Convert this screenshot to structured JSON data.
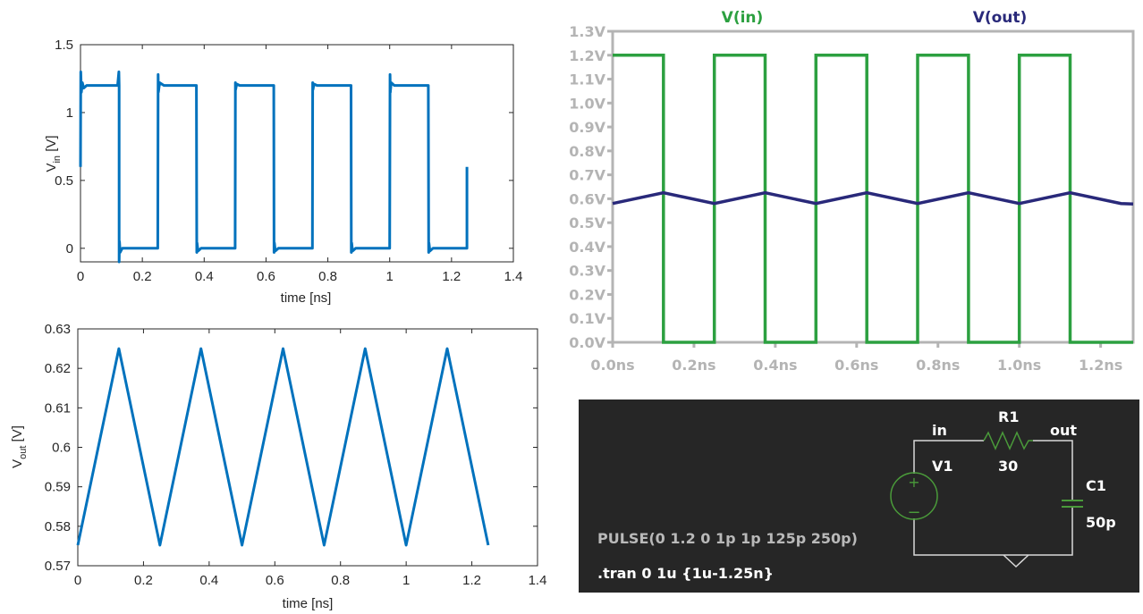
{
  "colors": {
    "matlab_line": "#0072bd",
    "lt_vin": "#2ca040",
    "lt_vout": "#29297a",
    "lt_frame": "#b4b4b4",
    "lt_tick_text": "#b4b4b4",
    "schematic_bg": "#262626",
    "schematic_wire": "#d8d8d8",
    "schematic_component": "#4a9a3a"
  },
  "chart_data": [
    {
      "type": "line",
      "xlabel": "time [ns]",
      "ylabel_main": "V",
      "ylabel_sub": "in",
      "ylabel_unit": " [V]",
      "xlim": [
        0,
        1.4
      ],
      "ylim": [
        -0.1,
        1.5
      ],
      "xticks": [
        0,
        0.2,
        0.4,
        0.6,
        0.8,
        1,
        1.2,
        1.4
      ],
      "xtick_labels": [
        "0",
        "0.2",
        "0.4",
        "0.6",
        "0.8",
        "1",
        "1.2",
        "1.4"
      ],
      "yticks": [
        0,
        0.5,
        1,
        1.5
      ],
      "ytick_labels": [
        "0",
        "0.5",
        "1",
        "1.5"
      ],
      "series": [
        {
          "x": [
            0,
            0.001,
            0.003,
            0.006,
            0.01,
            0.02,
            0.12,
            0.124,
            0.125,
            0.125,
            0.126,
            0.128,
            0.135,
            0.25,
            0.251,
            0.252,
            0.256,
            0.27,
            0.375,
            0.376,
            0.377,
            0.38,
            0.39,
            0.5,
            0.501,
            0.502,
            0.505,
            0.515,
            0.625,
            0.626,
            0.627,
            0.63,
            0.64,
            0.75,
            0.751,
            0.752,
            0.755,
            0.765,
            0.875,
            0.876,
            0.877,
            0.88,
            0.89,
            1.0,
            1.001,
            1.002,
            1.005,
            1.015,
            1.125,
            1.126,
            1.127,
            1.13,
            1.14,
            1.25,
            1.25
          ],
          "y": [
            0.6,
            1.3,
            1.15,
            1.22,
            1.18,
            1.2,
            1.2,
            1.3,
            1.2,
            -0.1,
            0.05,
            -0.03,
            0,
            0,
            1.28,
            1.15,
            1.22,
            1.2,
            1.2,
            -0.03,
            0.04,
            -0.02,
            0,
            0,
            1.22,
            1.17,
            1.21,
            1.2,
            1.2,
            -0.03,
            0.04,
            -0.02,
            0,
            0,
            1.22,
            1.17,
            1.21,
            1.2,
            1.2,
            -0.03,
            0.04,
            -0.02,
            0,
            0,
            1.28,
            1.15,
            1.22,
            1.2,
            1.2,
            -0.03,
            0.04,
            -0.02,
            0,
            0,
            0.6
          ]
        }
      ]
    },
    {
      "type": "line",
      "xlabel": "time [ns]",
      "ylabel_main": "V",
      "ylabel_sub": "out",
      "ylabel_unit": " [V]",
      "xlim": [
        0,
        1.4
      ],
      "ylim": [
        0.57,
        0.63
      ],
      "xticks": [
        0,
        0.2,
        0.4,
        0.6,
        0.8,
        1,
        1.2,
        1.4
      ],
      "xtick_labels": [
        "0",
        "0.2",
        "0.4",
        "0.6",
        "0.8",
        "1",
        "1.2",
        "1.4"
      ],
      "yticks": [
        0.57,
        0.58,
        0.59,
        0.6,
        0.61,
        0.62,
        0.63
      ],
      "ytick_labels": [
        "0.57",
        "0.58",
        "0.59",
        "0.6",
        "0.61",
        "0.62",
        "0.63"
      ],
      "series": [
        {
          "x": [
            0,
            0.125,
            0.25,
            0.375,
            0.5,
            0.625,
            0.75,
            0.875,
            1.0,
            1.125,
            1.25
          ],
          "y": [
            0.5752,
            0.625,
            0.5752,
            0.625,
            0.5752,
            0.625,
            0.5752,
            0.625,
            0.5752,
            0.625,
            0.5752
          ]
        }
      ]
    },
    {
      "type": "line",
      "legend": [
        "V(in)",
        "V(out)"
      ],
      "xlim": [
        0,
        1.28
      ],
      "ylim": [
        0,
        1.3
      ],
      "xticks": [
        0,
        0.2,
        0.4,
        0.6,
        0.8,
        1.0,
        1.2
      ],
      "xtick_labels": [
        "0.0ns",
        "0.2ns",
        "0.4ns",
        "0.6ns",
        "0.8ns",
        "1.0ns",
        "1.2ns"
      ],
      "yticks": [
        0,
        0.1,
        0.2,
        0.3,
        0.4,
        0.5,
        0.6,
        0.7,
        0.8,
        0.9,
        1.0,
        1.1,
        1.2,
        1.3
      ],
      "ytick_labels": [
        "0.0V",
        "0.1V",
        "0.2V",
        "0.3V",
        "0.4V",
        "0.5V",
        "0.6V",
        "0.7V",
        "0.8V",
        "0.9V",
        "1.0V",
        "1.1V",
        "1.2V",
        "1.3V"
      ],
      "series": [
        {
          "name": "V(in)",
          "x": [
            0,
            0.125,
            0.125,
            0.25,
            0.25,
            0.375,
            0.375,
            0.5,
            0.5,
            0.625,
            0.625,
            0.75,
            0.75,
            0.875,
            0.875,
            1.0,
            1.0,
            1.125,
            1.125,
            1.25,
            1.25,
            1.28
          ],
          "y": [
            1.2,
            1.2,
            0,
            0,
            1.2,
            1.2,
            0,
            0,
            1.2,
            1.2,
            0,
            0,
            1.2,
            1.2,
            0,
            0,
            1.2,
            1.2,
            0,
            0,
            0,
            0
          ]
        },
        {
          "name": "V(out)",
          "x": [
            0,
            0.125,
            0.25,
            0.375,
            0.5,
            0.625,
            0.75,
            0.875,
            1.0,
            1.125,
            1.25,
            1.28
          ],
          "y": [
            0.58,
            0.625,
            0.58,
            0.625,
            0.58,
            0.625,
            0.58,
            0.625,
            0.58,
            0.625,
            0.58,
            0.578
          ]
        }
      ]
    }
  ],
  "schematic": {
    "node_in": "in",
    "node_out": "out",
    "resistor_name": "R1",
    "resistor_value": "30",
    "source_name": "V1",
    "capacitor_name": "C1",
    "capacitor_value": "50p",
    "source_spec": "PULSE(0 1.2 0 1p 1p 125p 250p)",
    "tran_directive": ".tran 0 1u {1u-1.25n}"
  }
}
